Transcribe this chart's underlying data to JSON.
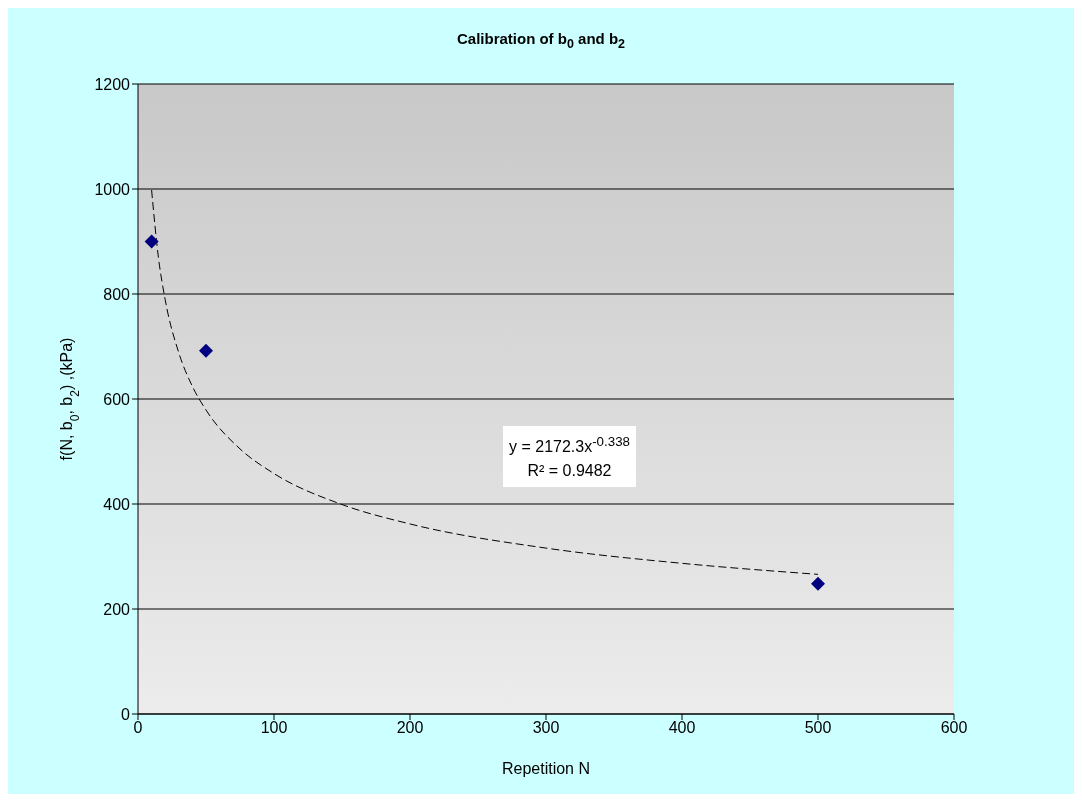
{
  "chart_data": {
    "type": "scatter",
    "title": "Calibration of b$_{0}$ and b$_{2}$",
    "xlabel": "Repetition N",
    "ylabel": "f(N, b$_{0}$, b$_{2}$) ,(kPa)",
    "xlim": [
      0,
      600
    ],
    "xticks": [
      0,
      100,
      200,
      300,
      400,
      500,
      600
    ],
    "ylim": [
      0,
      1200
    ],
    "yticks": [
      0,
      200,
      400,
      600,
      800,
      1000,
      1200
    ],
    "grid": "y",
    "series": [
      {
        "type": "scatter",
        "color": "#000080",
        "marker": "diamond",
        "x": [
          10,
          50,
          500
        ],
        "values": [
          900,
          692,
          248
        ]
      },
      {
        "type": "line",
        "color": "#000000",
        "marker": "none",
        "line_style": "dashed",
        "x": [
          10,
          15,
          20,
          30,
          40,
          50,
          75,
          100,
          150,
          200,
          300,
          400,
          500
        ],
        "values": [
          998,
          870,
          789,
          688,
          624,
          579,
          505,
          458,
          399,
          362,
          316,
          287,
          266
        ]
      }
    ],
    "annotations": [
      "y = 2172.3x$^{-0.338}$",
      "R² = 0.9482"
    ]
  }
}
